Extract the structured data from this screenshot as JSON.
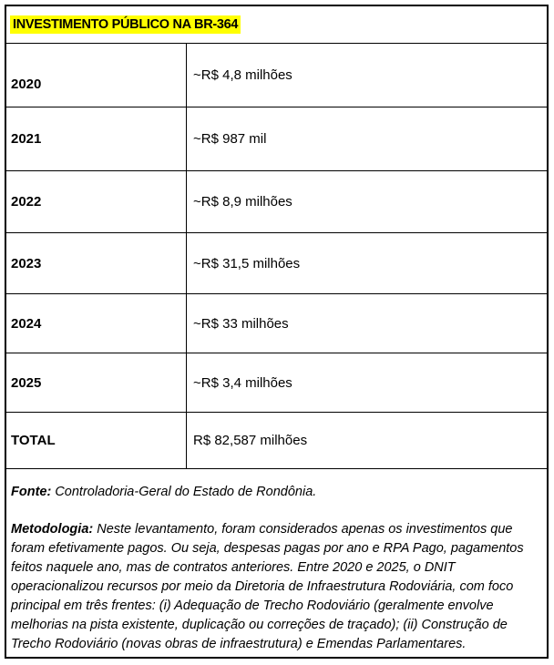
{
  "title": "INVESTIMENTO PÚBLICO NA BR-364",
  "colors": {
    "title_highlight": "#FFFF00",
    "border": "#000000",
    "text": "#000000",
    "background": "#FFFFFF"
  },
  "table": {
    "rows": [
      {
        "label": "2020",
        "value": "~R$ 4,8 milhões"
      },
      {
        "label": "2021",
        "value": "~R$ 987 mil"
      },
      {
        "label": "2022",
        "value": "~R$ 8,9 milhões"
      },
      {
        "label": "2023",
        "value": "~R$ 31,5 milhões"
      },
      {
        "label": "2024",
        "value": "~R$ 33 milhões"
      },
      {
        "label": "2025",
        "value": "~R$ 3,4 milhões"
      },
      {
        "label": "TOTAL",
        "value": "R$ 82,587 milhões"
      }
    ]
  },
  "footer": {
    "source_label": "Fonte:",
    "source_text": " Controladoria-Geral do Estado de Rondônia.",
    "methodology_label": "Metodologia:",
    "methodology_text": " Neste levantamento, foram considerados apenas os investimentos que foram efetivamente pagos. Ou seja, despesas pagas por ano e RPA Pago, pagamentos feitos naquele ano, mas de contratos anteriores. Entre 2020 e 2025, o DNIT operacionalizou recursos por meio da Diretoria de Infraestrutura Rodoviária, com foco principal em três frentes: (i) Adequação de Trecho Rodoviário (geralmente envolve melhorias na pista existente, duplicação ou correções de traçado); (ii) Construção de Trecho Rodoviário (novas obras de infraestrutura) e Emendas Parlamentares."
  }
}
